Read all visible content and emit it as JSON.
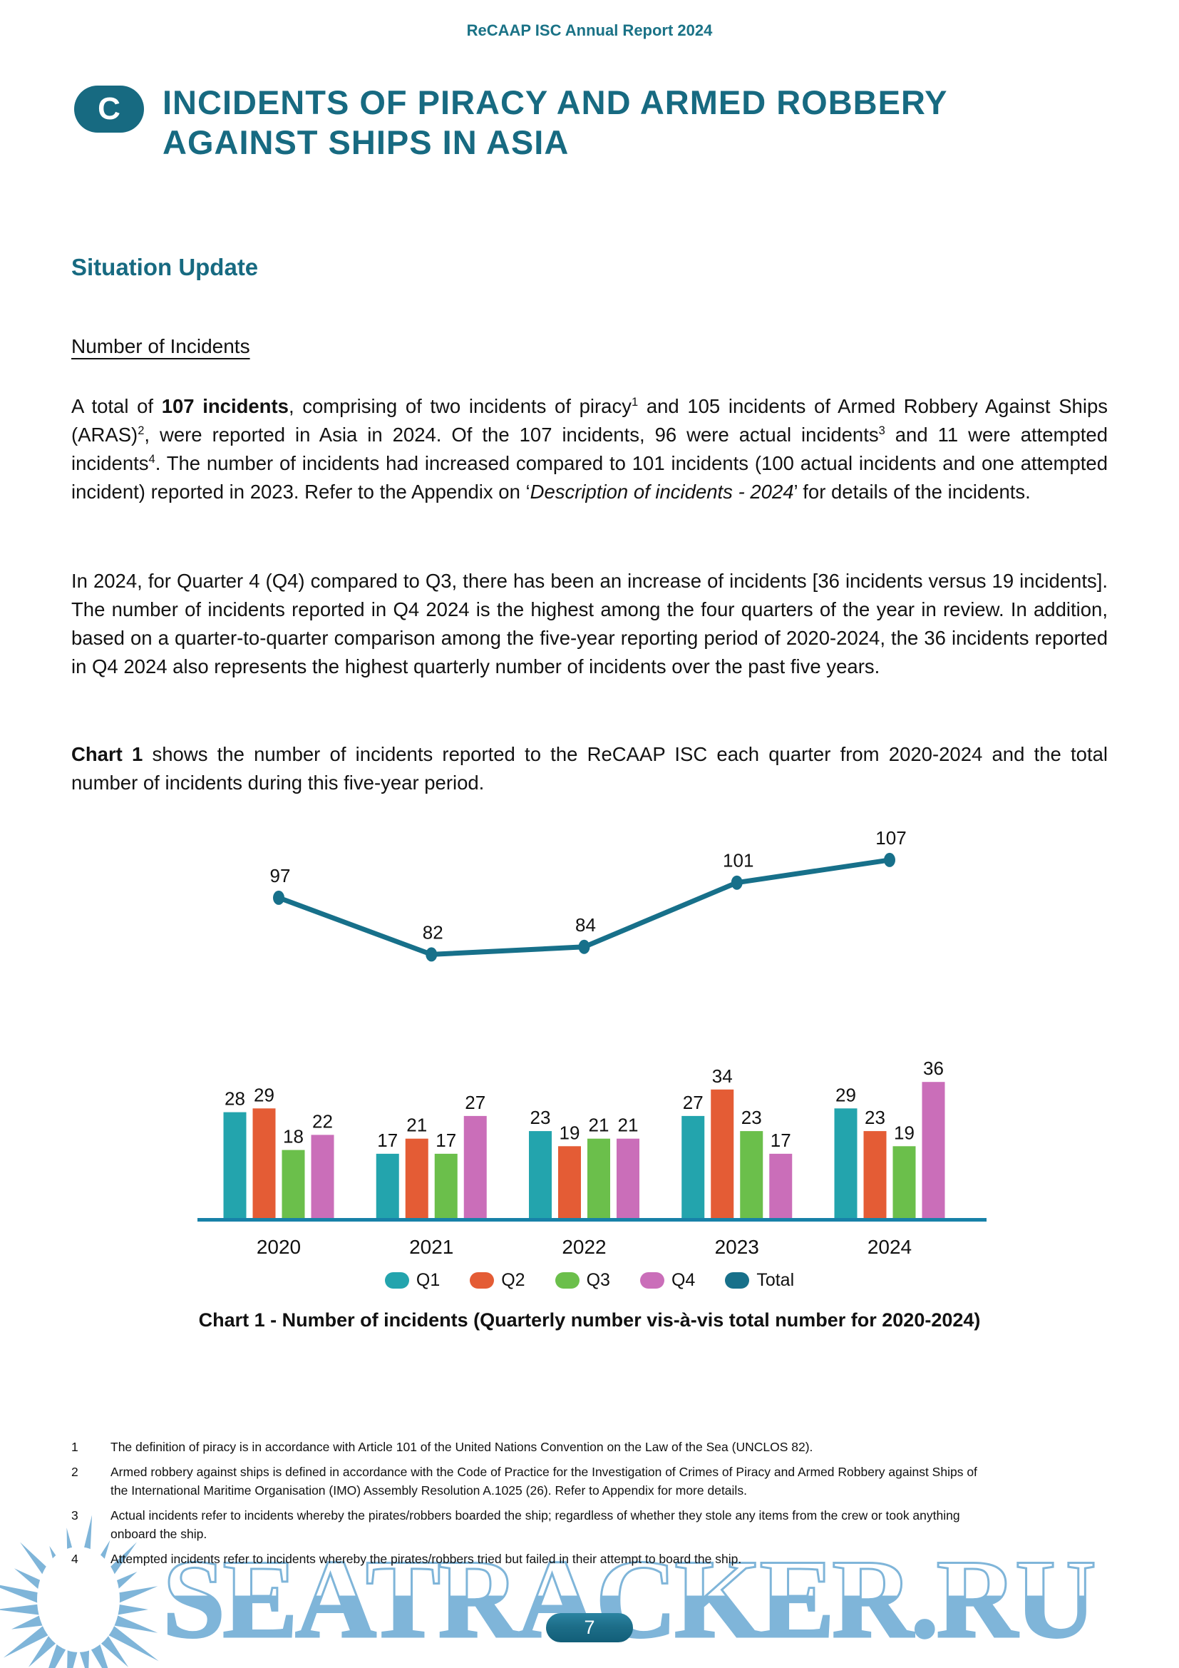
{
  "header": {
    "report_title": "ReCAAP ISC Annual Report 2024"
  },
  "section": {
    "badge": "C",
    "title_line1": "INCIDENTS OF PIRACY AND ARMED ROBBERY",
    "title_line2": "AGAINST SHIPS IN ASIA"
  },
  "subheading": "Situation Update",
  "subsection": "Number of Incidents",
  "paragraphs": {
    "p1": [
      {
        "t": "A total of "
      },
      {
        "t": "107 incidents",
        "b": true
      },
      {
        "t": ", comprising of two incidents of piracy"
      },
      {
        "t": "1",
        "sup": true
      },
      {
        "t": " and 105 incidents of Armed Robbery Against Ships (ARAS)"
      },
      {
        "t": "2",
        "sup": true
      },
      {
        "t": ", were reported in Asia in 2024. Of the 107 incidents, 96 were actual incidents"
      },
      {
        "t": "3",
        "sup": true
      },
      {
        "t": " and 11 were attempted incidents"
      },
      {
        "t": "4",
        "sup": true
      },
      {
        "t": ". The number of incidents had increased compared to 101 incidents (100 actual incidents and one attempted incident) reported in 2023. Refer to the Appendix on ‘"
      },
      {
        "t": "Description of incidents - 2024",
        "i": true
      },
      {
        "t": "’ for details of the incidents."
      }
    ],
    "p2": [
      {
        "t": "In 2024, for Quarter 4 (Q4) compared to Q3, there has been an increase of incidents [36 incidents versus 19 incidents]. The number of incidents reported in Q4 2024 is the highest among the four quarters of the year in review. In addition, based on a quarter-to-quarter comparison among the five-year reporting period of 2020-2024, the 36 incidents reported in Q4 2024 also represents the highest quarterly number of incidents over the past five years."
      }
    ],
    "p3": [
      {
        "t": "Chart 1",
        "b": true
      },
      {
        "t": " shows the number of incidents reported to the ReCAAP ISC each quarter from 2020-2024 and the total number of incidents during this five-year period."
      }
    ]
  },
  "chart_data": {
    "type": "bar",
    "subtype": "grouped-bars-with-total-line",
    "categories": [
      "2020",
      "2021",
      "2022",
      "2023",
      "2024"
    ],
    "series": [
      {
        "name": "Q1",
        "color": "#23a4ad",
        "values": [
          28,
          17,
          23,
          27,
          29
        ]
      },
      {
        "name": "Q2",
        "color": "#e45c35",
        "values": [
          29,
          21,
          19,
          34,
          23
        ]
      },
      {
        "name": "Q3",
        "color": "#6bbf4b",
        "values": [
          18,
          17,
          21,
          23,
          19
        ]
      },
      {
        "name": "Q4",
        "color": "#ca6eb9",
        "values": [
          22,
          27,
          21,
          17,
          36
        ]
      }
    ],
    "total_series": {
      "name": "Total",
      "color": "#17708a",
      "values": [
        97,
        82,
        84,
        101,
        107
      ]
    },
    "legend": [
      "Q1",
      "Q2",
      "Q3",
      "Q4",
      "Total"
    ],
    "legend_position": "bottom",
    "grid": false,
    "ylim": [
      0,
      40
    ],
    "axis_color": "#1781a8",
    "xlabel": "",
    "ylabel": "",
    "caption": "Chart 1 - Number of incidents (Quarterly number vis-à-vis total number for 2020-2024)"
  },
  "footnotes": [
    {
      "num": "1",
      "text": "The definition of piracy is in accordance with Article 101 of the United Nations Convention on the Law of the Sea (UNCLOS 82)."
    },
    {
      "num": "2",
      "text": "Armed robbery against ships is defined in accordance with the Code of Practice for the Investigation of Crimes of Piracy and Armed Robbery against Ships of the International Maritime Organisation (IMO) Assembly Resolution A.1025 (26). Refer to Appendix for more details."
    },
    {
      "num": "3",
      "text": "Actual incidents refer to incidents whereby the pirates/robbers boarded the ship; regardless of whether they stole any items from the crew or took anything onboard the ship."
    },
    {
      "num": "4",
      "text": "Attempted incidents refer to incidents whereby the pirates/robbers tried but failed in their attempt to board the ship."
    }
  ],
  "footer": {
    "page_number": "7"
  },
  "watermark": {
    "text": "SEATRACKER.RU",
    "color": "#7fb5d9"
  }
}
